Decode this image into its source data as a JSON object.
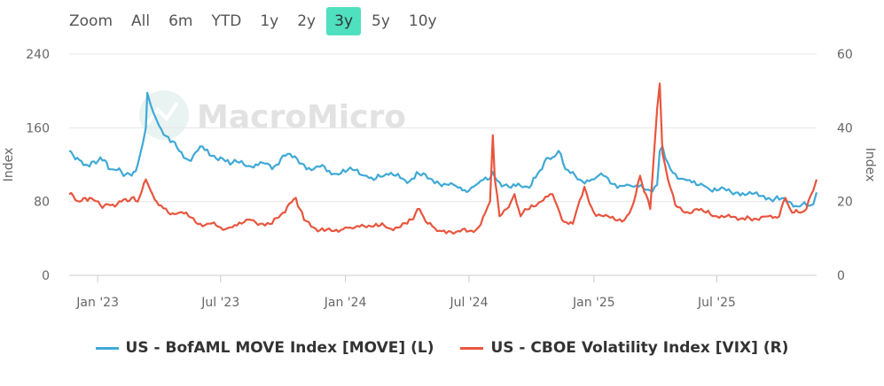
{
  "zoom": {
    "label": "Zoom",
    "options": [
      "All",
      "6m",
      "YTD",
      "1y",
      "2y",
      "3y",
      "5y",
      "10y"
    ],
    "selected": "3y"
  },
  "watermark": "MacroMicro",
  "chart_data": {
    "type": "line",
    "xlim": [
      "2022-11-20",
      "2025-11-25"
    ],
    "x_ticks": [
      "Jan '23",
      "Jul '23",
      "Jan '24",
      "Jul '24",
      "Jan '25",
      "Jul '25"
    ],
    "y_left": {
      "label": "Index",
      "ticks": [
        0,
        80,
        160,
        240
      ],
      "lim": [
        0,
        240
      ]
    },
    "y_right": {
      "label": "Index",
      "ticks": [
        0,
        20,
        40,
        60
      ],
      "lim": [
        0,
        60
      ]
    },
    "grid": true,
    "legend_position": "bottom",
    "series": [
      {
        "name": "US - BofAML MOVE Index [MOVE] (L)",
        "axis": "left",
        "color": "#3fa9d6",
        "dates": [
          "2022-11-20",
          "2022-12-05",
          "2022-12-20",
          "2023-01-05",
          "2023-01-20",
          "2023-02-05",
          "2023-02-20",
          "2023-03-01",
          "2023-03-09",
          "2023-03-13",
          "2023-03-15",
          "2023-03-20",
          "2023-03-28",
          "2023-04-05",
          "2023-04-15",
          "2023-05-01",
          "2023-05-15",
          "2023-06-01",
          "2023-06-15",
          "2023-07-01",
          "2023-07-15",
          "2023-08-01",
          "2023-08-15",
          "2023-09-01",
          "2023-09-15",
          "2023-10-01",
          "2023-10-15",
          "2023-11-01",
          "2023-11-15",
          "2023-12-01",
          "2023-12-15",
          "2024-01-01",
          "2024-01-15",
          "2024-02-01",
          "2024-02-15",
          "2024-03-01",
          "2024-03-15",
          "2024-04-01",
          "2024-04-15",
          "2024-05-01",
          "2024-05-15",
          "2024-06-01",
          "2024-06-15",
          "2024-07-01",
          "2024-07-15",
          "2024-08-01",
          "2024-08-05",
          "2024-08-15",
          "2024-09-01",
          "2024-09-15",
          "2024-10-01",
          "2024-10-10",
          "2024-10-20",
          "2024-11-01",
          "2024-11-10",
          "2024-11-20",
          "2024-12-01",
          "2024-12-15",
          "2025-01-01",
          "2025-01-15",
          "2025-02-01",
          "2025-02-15",
          "2025-03-01",
          "2025-03-15",
          "2025-03-25",
          "2025-04-04",
          "2025-04-08",
          "2025-04-12",
          "2025-04-20",
          "2025-05-01",
          "2025-05-15",
          "2025-06-01",
          "2025-06-15",
          "2025-07-01",
          "2025-07-15",
          "2025-08-01",
          "2025-08-15",
          "2025-09-01",
          "2025-09-15",
          "2025-10-01",
          "2025-10-15",
          "2025-11-01",
          "2025-11-10",
          "2025-11-20",
          "2025-11-25"
        ],
        "values": [
          135,
          125,
          118,
          128,
          115,
          112,
          108,
          120,
          145,
          160,
          198,
          185,
          170,
          158,
          150,
          135,
          125,
          140,
          130,
          128,
          120,
          124,
          118,
          122,
          115,
          130,
          128,
          120,
          115,
          118,
          110,
          112,
          114,
          108,
          105,
          110,
          108,
          100,
          112,
          105,
          102,
          98,
          95,
          92,
          100,
          105,
          112,
          101,
          95,
          97,
          98,
          110,
          123,
          128,
          135,
          115,
          112,
          102,
          104,
          108,
          99,
          97,
          96,
          94,
          92,
          98,
          135,
          140,
          122,
          110,
          104,
          98,
          96,
          92,
          92,
          90,
          88,
          86,
          84,
          82,
          80,
          75,
          76,
          77,
          90
        ]
      },
      {
        "name": "US - CBOE Volatility Index [VIX] (R)",
        "axis": "right",
        "color": "#e8553e",
        "dates": [
          "2022-11-20",
          "2022-12-05",
          "2022-12-20",
          "2023-01-05",
          "2023-01-20",
          "2023-02-05",
          "2023-02-20",
          "2023-03-01",
          "2023-03-13",
          "2023-03-20",
          "2023-04-01",
          "2023-04-15",
          "2023-05-01",
          "2023-05-15",
          "2023-06-01",
          "2023-06-15",
          "2023-07-01",
          "2023-07-15",
          "2023-08-01",
          "2023-08-15",
          "2023-09-01",
          "2023-09-15",
          "2023-10-01",
          "2023-10-20",
          "2023-11-01",
          "2023-11-15",
          "2023-12-01",
          "2023-12-15",
          "2024-01-01",
          "2024-01-15",
          "2024-02-01",
          "2024-02-15",
          "2024-03-01",
          "2024-03-15",
          "2024-04-01",
          "2024-04-19",
          "2024-05-01",
          "2024-05-15",
          "2024-06-01",
          "2024-06-15",
          "2024-07-01",
          "2024-07-15",
          "2024-07-25",
          "2024-08-01",
          "2024-08-05",
          "2024-08-08",
          "2024-08-15",
          "2024-09-01",
          "2024-09-06",
          "2024-09-15",
          "2024-10-01",
          "2024-10-15",
          "2024-11-01",
          "2024-11-15",
          "2024-12-01",
          "2024-12-18",
          "2025-01-01",
          "2025-01-15",
          "2025-02-01",
          "2025-02-15",
          "2025-03-01",
          "2025-03-10",
          "2025-03-25",
          "2025-04-04",
          "2025-04-08",
          "2025-04-12",
          "2025-04-20",
          "2025-05-01",
          "2025-05-15",
          "2025-06-01",
          "2025-06-15",
          "2025-07-01",
          "2025-07-15",
          "2025-08-01",
          "2025-08-15",
          "2025-09-01",
          "2025-09-15",
          "2025-10-01",
          "2025-10-10",
          "2025-10-20",
          "2025-11-01",
          "2025-11-10",
          "2025-11-20",
          "2025-11-25"
        ],
        "values": [
          22,
          20,
          21,
          19,
          19,
          20,
          21,
          20,
          26,
          23,
          19,
          17,
          17,
          16,
          14,
          14,
          13,
          13,
          14,
          15,
          14,
          14,
          17,
          21,
          15,
          13,
          12,
          12,
          13,
          13,
          13,
          14,
          13,
          13,
          14,
          18,
          14,
          12,
          12,
          12,
          12,
          13,
          17,
          20,
          38,
          26,
          16,
          20,
          22,
          16,
          19,
          20,
          22,
          15,
          14,
          24,
          17,
          16,
          15,
          15,
          20,
          27,
          18,
          45,
          52,
          33,
          26,
          19,
          17,
          18,
          17,
          16,
          16,
          15,
          16,
          15,
          16,
          16,
          21,
          17,
          17,
          18,
          23,
          26
        ]
      }
    ]
  }
}
